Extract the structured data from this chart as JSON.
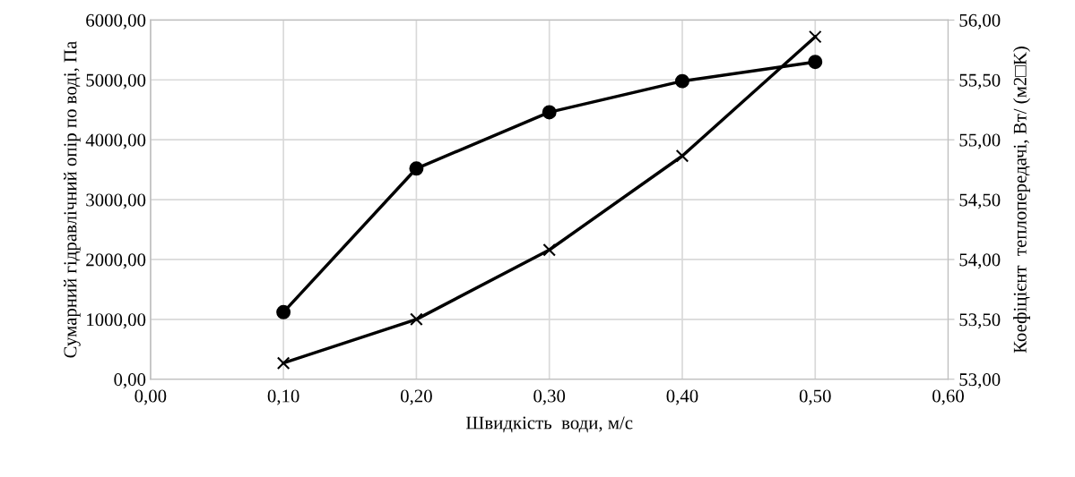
{
  "chart_data": {
    "type": "line",
    "xlabel": "Швидкість  води, м/с",
    "ylabel": "Сумарний гідравлічний опір по воді, Па",
    "y2label": "Коефіцієнт  теплопередачі, Вт/ (м2□K)",
    "x": [
      0.1,
      0.2,
      0.3,
      0.4,
      0.5
    ],
    "series": [
      {
        "color": "#000000",
        "marker": "cross",
        "values": [
          270,
          1000,
          2160,
          3730,
          5720
        ]
      },
      {
        "color": "#000000",
        "marker": "circle",
        "axis": "y2",
        "values": [
          53.56,
          54.76,
          55.23,
          55.49,
          55.65
        ]
      }
    ],
    "xlim": [
      0,
      0.6
    ],
    "xticks": [
      {
        "value": 0,
        "label": "0,00"
      },
      {
        "value": 0.1,
        "label": "0,10"
      },
      {
        "value": 0.2,
        "label": "0,20"
      },
      {
        "value": 0.3,
        "label": "0,30"
      },
      {
        "value": 0.4,
        "label": "0,40"
      },
      {
        "value": 0.5,
        "label": "0,50"
      },
      {
        "value": 0.6,
        "label": "0,60"
      }
    ],
    "ylim": [
      0,
      6000
    ],
    "yticks": [
      {
        "value": 0,
        "label": "0,00"
      },
      {
        "value": 1000,
        "label": "1000,00"
      },
      {
        "value": 2000,
        "label": "2000,00"
      },
      {
        "value": 3000,
        "label": "3000,00"
      },
      {
        "value": 4000,
        "label": "4000,00"
      },
      {
        "value": 5000,
        "label": "5000,00"
      },
      {
        "value": 6000,
        "label": "6000,00"
      }
    ],
    "y2lim": [
      53,
      56
    ],
    "y2ticks": [
      {
        "value": 53,
        "label": "53,00"
      },
      {
        "value": 53.5,
        "label": "53,50"
      },
      {
        "value": 54,
        "label": "54,00"
      },
      {
        "value": 54.5,
        "label": "54,50"
      },
      {
        "value": 55,
        "label": "55,00"
      },
      {
        "value": 55.5,
        "label": "55,50"
      },
      {
        "value": 56,
        "label": "56,00"
      }
    ],
    "grid": true,
    "line_style": "solid"
  }
}
